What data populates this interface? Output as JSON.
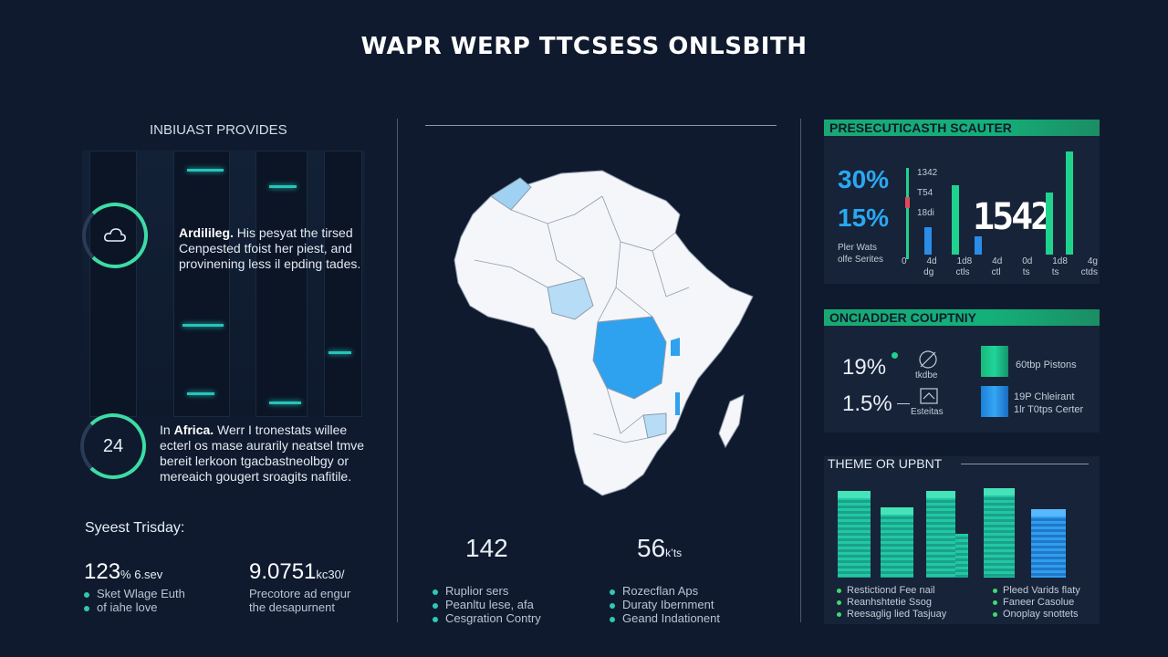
{
  "header": {
    "title": "WAPR WERP TTCSESS ONLSBITH"
  },
  "left": {
    "section_title": "INBIUAST PROVIDES",
    "block1": {
      "text_line1_bold": "Ardilileg.",
      "text_line1_rest": " His pesyat the tirsed",
      "text_line2": "Cenpested tfoist her piest, and",
      "text_line3": "provinening less il epding tades."
    },
    "block2": {
      "ring_value": "24",
      "text_line1_pre": "In ",
      "text_line1_bold": "Africa.",
      "text_line1_rest": " Werr I tronestats willee",
      "text_line2": "ecterl os mase aurarily neatsel tmve",
      "text_line3": "bereit lerkoon tgacbastneolbgy or",
      "text_line4": "mereaich gougert sroagits nafitile."
    },
    "bottom": {
      "heading": "Syeest Trisday:",
      "stat1": {
        "value": "123",
        "suffix": "% 6.sev",
        "line1": "Sket Wlage Euth",
        "line2": "of iahe love"
      },
      "stat2": {
        "value": "9.0751",
        "suffix": "kc30/",
        "line1": "Precotore ad engur",
        "line2": "the desapurnent"
      }
    }
  },
  "center": {
    "stat_left": "142",
    "stat_right_value": "56",
    "stat_right_suffix": "k’ts",
    "list_left": [
      "Ruplior sers",
      "Peanltu lese, afa",
      "Cesgration Contry"
    ],
    "list_right": [
      "Rozecflan Aps",
      "Duraty Ibernment",
      "Geand Indationent"
    ]
  },
  "right": {
    "panel1": {
      "title": "PRESECUTICASTH SCAUTER",
      "pct1": "30%",
      "pct2": "15%",
      "sub1": "Pler Wats",
      "sub2": "olfe Serites",
      "tick_a": "1342",
      "tick_b": "T54",
      "tick_c": "18di",
      "big_number": "1542",
      "axis_labels": [
        "0",
        "4d",
        "1d8",
        "4d",
        "0d",
        "1d8",
        "4g"
      ],
      "axis_labels2": [
        "",
        "dg",
        "ctls",
        "ctl",
        "ts",
        "ts",
        "ctds"
      ]
    },
    "panel2": {
      "title": "ONCIADDER COUPTNIY",
      "row1_pct": "19%",
      "row1_label": "tkdbe",
      "row2_pct": "1.5%",
      "row2_label": "Esteitas",
      "legend1": "60tbp Pistons",
      "legend2_line1": "19P Chleirant",
      "legend2_line2": "1lr T0tps Certer"
    },
    "panel3": {
      "title": "THEME OR UPBNT",
      "left_items": [
        "Restictiond Fee nail",
        "Reanhshtetie Ssog",
        "Reesaglig lied Tasjuay"
      ],
      "right_items": [
        "Pleed Varids flaty",
        "Faneer Casolue",
        "Onoplay snottets"
      ]
    }
  },
  "colors": {
    "accent_green": "#1fd28e",
    "accent_blue": "#2aa8f2",
    "background": "#0f1a2e"
  }
}
